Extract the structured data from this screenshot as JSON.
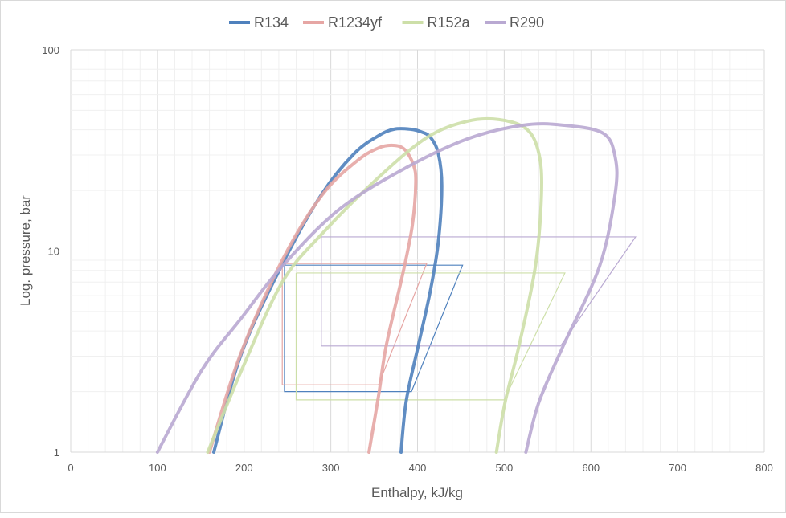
{
  "chart_data": {
    "type": "line",
    "title": "",
    "xlabel": "Enthalpy, kJ/kg",
    "ylabel": "Log. pressure, bar",
    "xlim": [
      0,
      800
    ],
    "ylim": [
      1,
      100
    ],
    "yscale": "log",
    "x_ticks": [
      "0",
      "100",
      "200",
      "300",
      "400",
      "500",
      "600",
      "700",
      "800"
    ],
    "y_ticks": [
      "1",
      "10",
      "100"
    ],
    "grid": true,
    "legend_position": "top",
    "series": [
      {
        "name": "R134",
        "color": "#4f81bd",
        "dome": [
          [
            165,
            1
          ],
          [
            197,
            3.1
          ],
          [
            247,
            9.1
          ],
          [
            290,
            19.3
          ],
          [
            327,
            30.5
          ],
          [
            355,
            37.4
          ],
          [
            373,
            40.3
          ],
          [
            392,
            40.3
          ],
          [
            405,
            39
          ],
          [
            415,
            36.7
          ],
          [
            424,
            30.5
          ],
          [
            428,
            21
          ],
          [
            424,
            11.1
          ],
          [
            415,
            6.4
          ],
          [
            401,
            3.4
          ],
          [
            387,
            1.8
          ],
          [
            381,
            1
          ]
        ],
        "cycle": [
          [
            246.5,
            8.5
          ],
          [
            246.5,
            2.0
          ],
          [
            393,
            2.0
          ],
          [
            452,
            8.5
          ],
          [
            246.5,
            8.5
          ]
        ]
      },
      {
        "name": "R1234yf",
        "color": "#e6a6a4",
        "dome": [
          [
            160,
            1
          ],
          [
            195,
            3
          ],
          [
            244,
            9
          ],
          [
            290,
            19
          ],
          [
            330,
            28
          ],
          [
            355,
            32.5
          ],
          [
            372,
            33.5
          ],
          [
            385,
            32
          ],
          [
            395,
            27
          ],
          [
            398,
            22
          ],
          [
            394,
            13.4
          ],
          [
            383,
            7.7
          ],
          [
            364,
            3.4
          ],
          [
            355,
            1.9
          ],
          [
            344,
            1
          ]
        ],
        "cycle": [
          [
            244,
            8.66
          ],
          [
            244,
            2.16
          ],
          [
            355,
            2.16
          ],
          [
            410.6,
            8.66
          ],
          [
            244,
            8.66
          ]
        ]
      },
      {
        "name": "R152a",
        "color": "#cddfa8",
        "dome": [
          [
            158,
            1
          ],
          [
            197,
            2.55
          ],
          [
            244,
            7
          ],
          [
            290,
            12.2
          ],
          [
            355,
            23.2
          ],
          [
            411,
            36.7
          ],
          [
            457,
            44.1
          ],
          [
            494,
            45
          ],
          [
            526,
            40.3
          ],
          [
            540,
            30.5
          ],
          [
            543,
            19.3
          ],
          [
            536,
            8.4
          ],
          [
            517,
            3.37
          ],
          [
            501,
            1.77
          ],
          [
            491,
            1
          ]
        ],
        "cycle": [
          [
            260,
            7.77
          ],
          [
            260,
            1.82
          ],
          [
            500,
            1.82
          ],
          [
            570,
            7.77
          ],
          [
            260,
            7.77
          ]
        ]
      },
      {
        "name": "R290",
        "color": "#b9a9d2",
        "dome": [
          [
            100,
            1
          ],
          [
            151,
            2.55
          ],
          [
            197,
            4.65
          ],
          [
            244,
            8.4
          ],
          [
            309,
            16
          ],
          [
            383,
            25.4
          ],
          [
            457,
            36
          ],
          [
            522,
            42.2
          ],
          [
            568,
            42.2
          ],
          [
            614,
            38.5
          ],
          [
            628,
            29.3
          ],
          [
            628,
            19.3
          ],
          [
            610,
            8.4
          ],
          [
            568,
            3.37
          ],
          [
            540,
            1.77
          ],
          [
            525,
            1
          ]
        ],
        "cycle": [
          [
            289,
            11.75
          ],
          [
            289,
            3.37
          ],
          [
            565,
            3.37
          ],
          [
            651.5,
            11.75
          ],
          [
            289,
            11.75
          ]
        ]
      }
    ]
  }
}
